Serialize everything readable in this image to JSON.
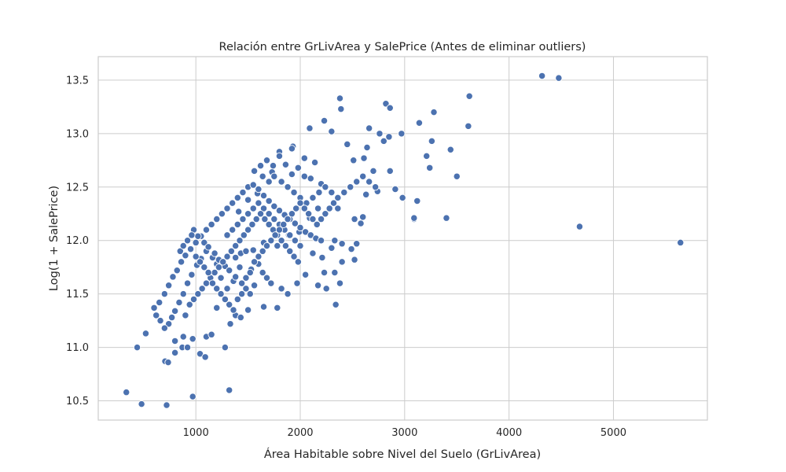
{
  "chart_data": {
    "type": "scatter",
    "title": "Relación entre GrLivArea y SalePrice (Antes de eliminar outliers)",
    "xlabel": "Área Habitable sobre Nivel del Suelo (GrLivArea)",
    "ylabel": "Log(1 + SalePrice)",
    "xlim": [
      65,
      5900
    ],
    "ylim": [
      10.32,
      13.72
    ],
    "xticks": [
      1000,
      2000,
      3000,
      4000,
      5000
    ],
    "xtick_labels": [
      "1000",
      "2000",
      "3000",
      "4000",
      "5000"
    ],
    "yticks": [
      10.5,
      11.0,
      11.5,
      12.0,
      12.5,
      13.0,
      13.5
    ],
    "ytick_labels": [
      "10.5",
      "11.0",
      "11.5",
      "12.0",
      "12.5",
      "13.0",
      "13.5"
    ],
    "grid": true,
    "point_color": "#4c72b0",
    "series": [
      {
        "points": [
          [
            334,
            10.58
          ],
          [
            480,
            10.47
          ],
          [
            720,
            10.46
          ],
          [
            970,
            10.54
          ],
          [
            1320,
            10.6
          ],
          [
            438,
            11.0
          ],
          [
            520,
            11.13
          ],
          [
            705,
            10.87
          ],
          [
            735,
            10.86
          ],
          [
            800,
            10.95
          ],
          [
            800,
            11.06
          ],
          [
            870,
            11.0
          ],
          [
            880,
            11.1
          ],
          [
            920,
            11.0
          ],
          [
            970,
            11.08
          ],
          [
            1040,
            10.94
          ],
          [
            1090,
            10.91
          ],
          [
            1100,
            11.1
          ],
          [
            1150,
            11.12
          ],
          [
            1280,
            11.0
          ],
          [
            1200,
            11.37
          ],
          [
            1330,
            11.22
          ],
          [
            1380,
            11.3
          ],
          [
            1430,
            11.28
          ],
          [
            1500,
            11.35
          ],
          [
            1650,
            11.38
          ],
          [
            1780,
            11.37
          ],
          [
            2340,
            11.4
          ],
          [
            3620,
            13.35
          ],
          [
            3610,
            13.07
          ],
          [
            3280,
            13.2
          ],
          [
            3140,
            13.1
          ],
          [
            3210,
            12.79
          ],
          [
            3260,
            12.93
          ],
          [
            3240,
            12.68
          ],
          [
            3440,
            12.85
          ],
          [
            3500,
            12.6
          ],
          [
            3400,
            12.21
          ],
          [
            3120,
            12.37
          ],
          [
            3090,
            12.2
          ],
          [
            3090,
            12.21
          ],
          [
            2980,
            12.4
          ],
          [
            4316,
            13.54
          ],
          [
            4476,
            13.52
          ],
          [
            4676,
            12.13
          ],
          [
            5642,
            11.98
          ],
          [
            2380,
            13.33
          ],
          [
            2390,
            13.23
          ],
          [
            2820,
            13.28
          ],
          [
            2860,
            13.24
          ],
          [
            2660,
            13.05
          ],
          [
            2760,
            13.0
          ],
          [
            2970,
            13.0
          ],
          [
            2230,
            13.12
          ],
          [
            2090,
            13.05
          ],
          [
            1800,
            12.83
          ],
          [
            1930,
            12.88
          ],
          [
            2300,
            13.02
          ],
          [
            2450,
            12.9
          ],
          [
            2800,
            12.93
          ],
          [
            2850,
            12.97
          ],
          [
            2640,
            12.87
          ],
          [
            2510,
            12.75
          ],
          [
            2610,
            12.77
          ],
          [
            2700,
            12.65
          ],
          [
            2860,
            12.65
          ],
          [
            2910,
            12.48
          ],
          [
            2630,
            12.43
          ],
          [
            2740,
            12.46
          ],
          [
            2600,
            12.22
          ],
          [
            2520,
            12.2
          ],
          [
            2580,
            12.16
          ],
          [
            2540,
            11.97
          ],
          [
            2400,
            11.97
          ],
          [
            2330,
            12.0
          ],
          [
            2300,
            11.93
          ],
          [
            2490,
            11.92
          ],
          [
            2400,
            11.8
          ],
          [
            2520,
            11.82
          ],
          [
            2330,
            11.7
          ],
          [
            2230,
            11.7
          ],
          [
            2210,
            11.84
          ],
          [
            2120,
            11.88
          ],
          [
            2170,
            11.58
          ],
          [
            2250,
            11.55
          ],
          [
            2380,
            11.6
          ],
          [
            2050,
            11.68
          ],
          [
            1970,
            11.6
          ],
          [
            1880,
            11.5
          ],
          [
            1820,
            11.55
          ],
          [
            1720,
            11.6
          ],
          [
            1680,
            11.65
          ],
          [
            1640,
            11.7
          ],
          [
            1600,
            11.78
          ],
          [
            1560,
            11.58
          ],
          [
            1530,
            11.73
          ],
          [
            1430,
            11.88
          ],
          [
            1380,
            11.84
          ],
          [
            1410,
            12.27
          ],
          [
            1500,
            12.38
          ],
          [
            1590,
            12.44
          ],
          [
            1640,
            12.6
          ],
          [
            1730,
            12.64
          ],
          [
            1800,
            12.79
          ],
          [
            1860,
            12.71
          ],
          [
            1920,
            12.86
          ],
          [
            2040,
            12.77
          ],
          [
            2140,
            12.73
          ],
          [
            2200,
            12.53
          ],
          [
            2170,
            12.3
          ],
          [
            2090,
            12.21
          ],
          [
            1990,
            12.08
          ],
          [
            1890,
            12.05
          ],
          [
            1780,
            11.95
          ],
          [
            1650,
            11.98
          ],
          [
            1550,
            11.91
          ],
          [
            1480,
            11.9
          ],
          [
            1420,
            11.75
          ],
          [
            1360,
            11.62
          ],
          [
            1300,
            11.55
          ],
          [
            1240,
            11.65
          ],
          [
            1200,
            11.78
          ],
          [
            1160,
            11.84
          ],
          [
            1100,
            11.9
          ],
          [
            1050,
            11.83
          ],
          [
            1010,
            11.77
          ],
          [
            960,
            11.68
          ],
          [
            920,
            11.6
          ],
          [
            880,
            11.5
          ],
          [
            840,
            11.42
          ],
          [
            800,
            11.34
          ],
          [
            770,
            11.28
          ],
          [
            740,
            11.22
          ],
          [
            700,
            11.18
          ],
          [
            660,
            11.25
          ],
          [
            620,
            11.3
          ],
          [
            600,
            11.37
          ],
          [
            650,
            11.42
          ],
          [
            700,
            11.5
          ],
          [
            740,
            11.58
          ],
          [
            780,
            11.66
          ],
          [
            820,
            11.72
          ],
          [
            860,
            11.8
          ],
          [
            900,
            11.86
          ],
          [
            950,
            11.92
          ],
          [
            1000,
            11.98
          ],
          [
            1050,
            12.04
          ],
          [
            1100,
            12.1
          ],
          [
            1150,
            12.15
          ],
          [
            1200,
            12.2
          ],
          [
            1250,
            12.25
          ],
          [
            1300,
            12.3
          ],
          [
            1350,
            12.35
          ],
          [
            1400,
            12.4
          ],
          [
            1450,
            12.45
          ],
          [
            1500,
            12.5
          ],
          [
            1550,
            12.52
          ],
          [
            1600,
            12.48
          ],
          [
            1650,
            12.42
          ],
          [
            1700,
            12.37
          ],
          [
            1750,
            12.32
          ],
          [
            1800,
            12.28
          ],
          [
            1850,
            12.24
          ],
          [
            1900,
            12.2
          ],
          [
            1950,
            12.16
          ],
          [
            2000,
            12.12
          ],
          [
            2050,
            12.08
          ],
          [
            2100,
            12.05
          ],
          [
            2150,
            12.02
          ],
          [
            2200,
            12.0
          ],
          [
            980,
            12.1
          ],
          [
            1020,
            12.04
          ],
          [
            1080,
            11.98
          ],
          [
            1120,
            11.94
          ],
          [
            1180,
            11.88
          ],
          [
            1220,
            11.82
          ],
          [
            1280,
            11.76
          ],
          [
            1320,
            11.72
          ],
          [
            1380,
            11.66
          ],
          [
            1440,
            11.6
          ],
          [
            1480,
            11.55
          ],
          [
            1520,
            11.5
          ],
          [
            1300,
            12.05
          ],
          [
            1350,
            12.1
          ],
          [
            1400,
            12.15
          ],
          [
            1450,
            12.2
          ],
          [
            1500,
            12.25
          ],
          [
            1550,
            12.3
          ],
          [
            1600,
            12.35
          ],
          [
            1650,
            12.3
          ],
          [
            1700,
            12.25
          ],
          [
            1750,
            12.2
          ],
          [
            1800,
            12.15
          ],
          [
            1850,
            12.1
          ],
          [
            1900,
            12.05
          ],
          [
            1950,
            12.0
          ],
          [
            2000,
            11.95
          ],
          [
            1700,
            12.55
          ],
          [
            1750,
            12.6
          ],
          [
            1820,
            12.55
          ],
          [
            1880,
            12.5
          ],
          [
            1940,
            12.45
          ],
          [
            2000,
            12.4
          ],
          [
            2060,
            12.35
          ],
          [
            2120,
            12.4
          ],
          [
            2180,
            12.45
          ],
          [
            2240,
            12.5
          ],
          [
            2300,
            12.45
          ],
          [
            2360,
            12.4
          ],
          [
            2420,
            12.45
          ],
          [
            2480,
            12.5
          ],
          [
            2540,
            12.55
          ],
          [
            2600,
            12.6
          ],
          [
            2660,
            12.55
          ],
          [
            2720,
            12.5
          ],
          [
            1560,
            12.65
          ],
          [
            1620,
            12.7
          ],
          [
            1680,
            12.75
          ],
          [
            1740,
            12.7
          ],
          [
            1920,
            12.62
          ],
          [
            1980,
            12.68
          ],
          [
            2040,
            12.6
          ],
          [
            2100,
            12.58
          ],
          [
            900,
            11.3
          ],
          [
            940,
            11.4
          ],
          [
            980,
            11.45
          ],
          [
            1020,
            11.5
          ],
          [
            1060,
            11.55
          ],
          [
            1100,
            11.6
          ],
          [
            1140,
            11.65
          ],
          [
            1180,
            11.7
          ],
          [
            1220,
            11.75
          ],
          [
            1260,
            11.8
          ],
          [
            1300,
            11.85
          ],
          [
            1340,
            11.9
          ],
          [
            1380,
            11.95
          ],
          [
            1420,
            12.0
          ],
          [
            1460,
            12.05
          ],
          [
            1500,
            12.1
          ],
          [
            1540,
            12.15
          ],
          [
            1580,
            12.2
          ],
          [
            1620,
            12.25
          ],
          [
            1660,
            12.2
          ],
          [
            1700,
            12.15
          ],
          [
            1740,
            12.1
          ],
          [
            1780,
            12.05
          ],
          [
            1820,
            12.0
          ],
          [
            1860,
            11.95
          ],
          [
            1900,
            11.9
          ],
          [
            1940,
            11.85
          ],
          [
            1980,
            11.8
          ],
          [
            850,
            11.9
          ],
          [
            880,
            11.95
          ],
          [
            920,
            12.0
          ],
          [
            960,
            12.05
          ],
          [
            1000,
            11.85
          ],
          [
            1040,
            11.8
          ],
          [
            1080,
            11.75
          ],
          [
            1120,
            11.7
          ],
          [
            1160,
            11.6
          ],
          [
            1200,
            11.55
          ],
          [
            1240,
            11.5
          ],
          [
            1280,
            11.45
          ],
          [
            1320,
            11.4
          ],
          [
            1360,
            11.35
          ],
          [
            1400,
            11.45
          ],
          [
            1440,
            11.5
          ],
          [
            1480,
            11.65
          ],
          [
            1520,
            11.7
          ],
          [
            1560,
            11.8
          ],
          [
            1600,
            11.85
          ],
          [
            1640,
            11.9
          ],
          [
            1680,
            11.95
          ],
          [
            1720,
            12.0
          ],
          [
            1760,
            12.05
          ],
          [
            1800,
            12.1
          ],
          [
            1840,
            12.15
          ],
          [
            1880,
            12.2
          ],
          [
            1920,
            12.25
          ],
          [
            1960,
            12.3
          ],
          [
            2000,
            12.35
          ],
          [
            2040,
            12.3
          ],
          [
            2080,
            12.25
          ],
          [
            2120,
            12.2
          ],
          [
            2160,
            12.15
          ],
          [
            2200,
            12.2
          ],
          [
            2240,
            12.25
          ],
          [
            2280,
            12.3
          ],
          [
            2320,
            12.35
          ],
          [
            2360,
            12.3
          ]
        ]
      }
    ]
  }
}
